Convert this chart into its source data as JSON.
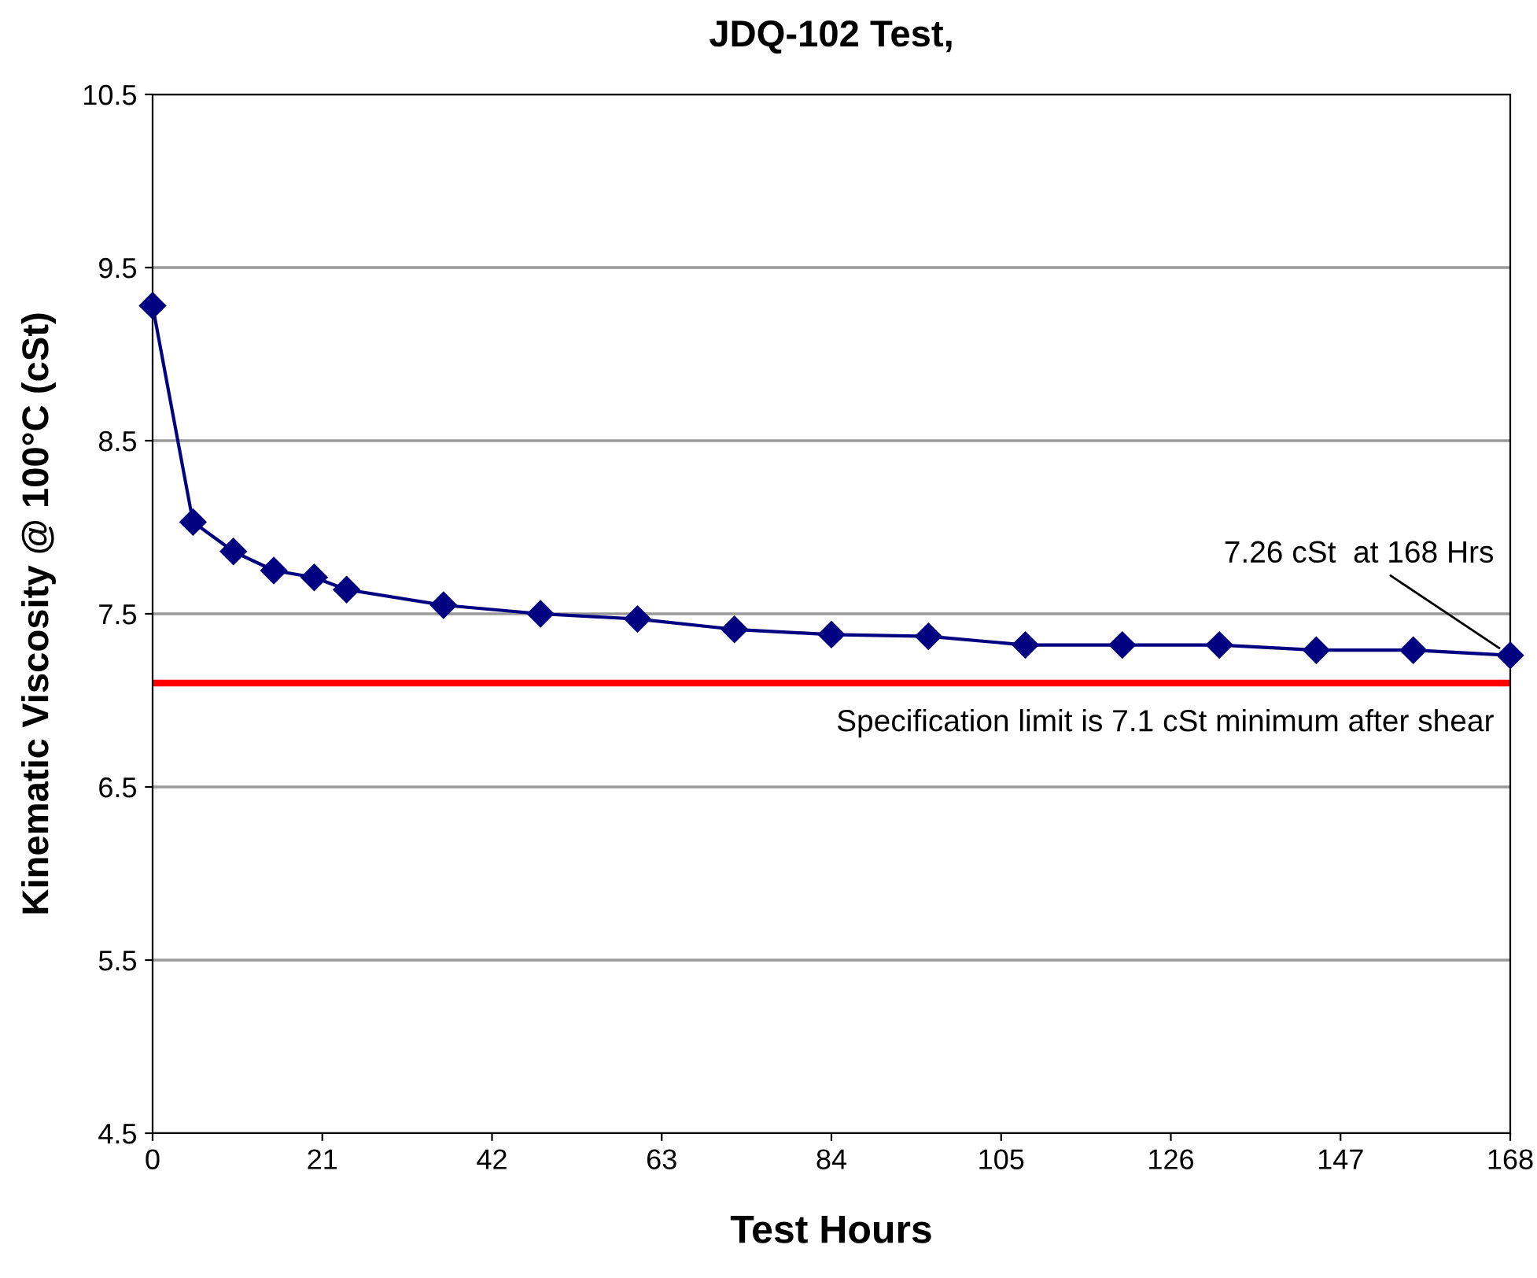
{
  "chart_data": {
    "type": "line",
    "title": "JDQ-102 Test,",
    "xlabel": "Test Hours",
    "ylabel": "Kinematic Viscosity @ 100°C (cSt)",
    "series": [
      {
        "color": "#000080",
        "x": [
          0,
          5,
          10,
          15,
          20,
          24,
          36,
          48,
          60,
          72,
          84,
          96,
          108,
          120,
          132,
          144,
          156,
          168
        ],
        "values": [
          9.28,
          8.03,
          7.86,
          7.75,
          7.71,
          7.64,
          7.55,
          7.5,
          7.47,
          7.41,
          7.38,
          7.37,
          7.32,
          7.32,
          7.32,
          7.29,
          7.29,
          7.26
        ]
      }
    ],
    "xlim": [
      0,
      168
    ],
    "xticks": [
      0,
      21,
      42,
      63,
      84,
      105,
      126,
      147,
      168
    ],
    "ylim": [
      4.5,
      10.5
    ],
    "yticks": [
      4.5,
      5.5,
      6.5,
      7.5,
      8.5,
      9.5,
      10.5
    ],
    "grid": "y",
    "marker": "diamond",
    "line_style": "solid",
    "ref_lines": [
      {
        "axis": "y",
        "value": 7.1,
        "label": "Specification limit is 7.1 cSt minimum after shear",
        "color": "#ff0000"
      }
    ],
    "annotations": [
      {
        "text": "7.26 cSt  at 168 Hrs",
        "x": 168,
        "y": 7.26
      }
    ]
  }
}
